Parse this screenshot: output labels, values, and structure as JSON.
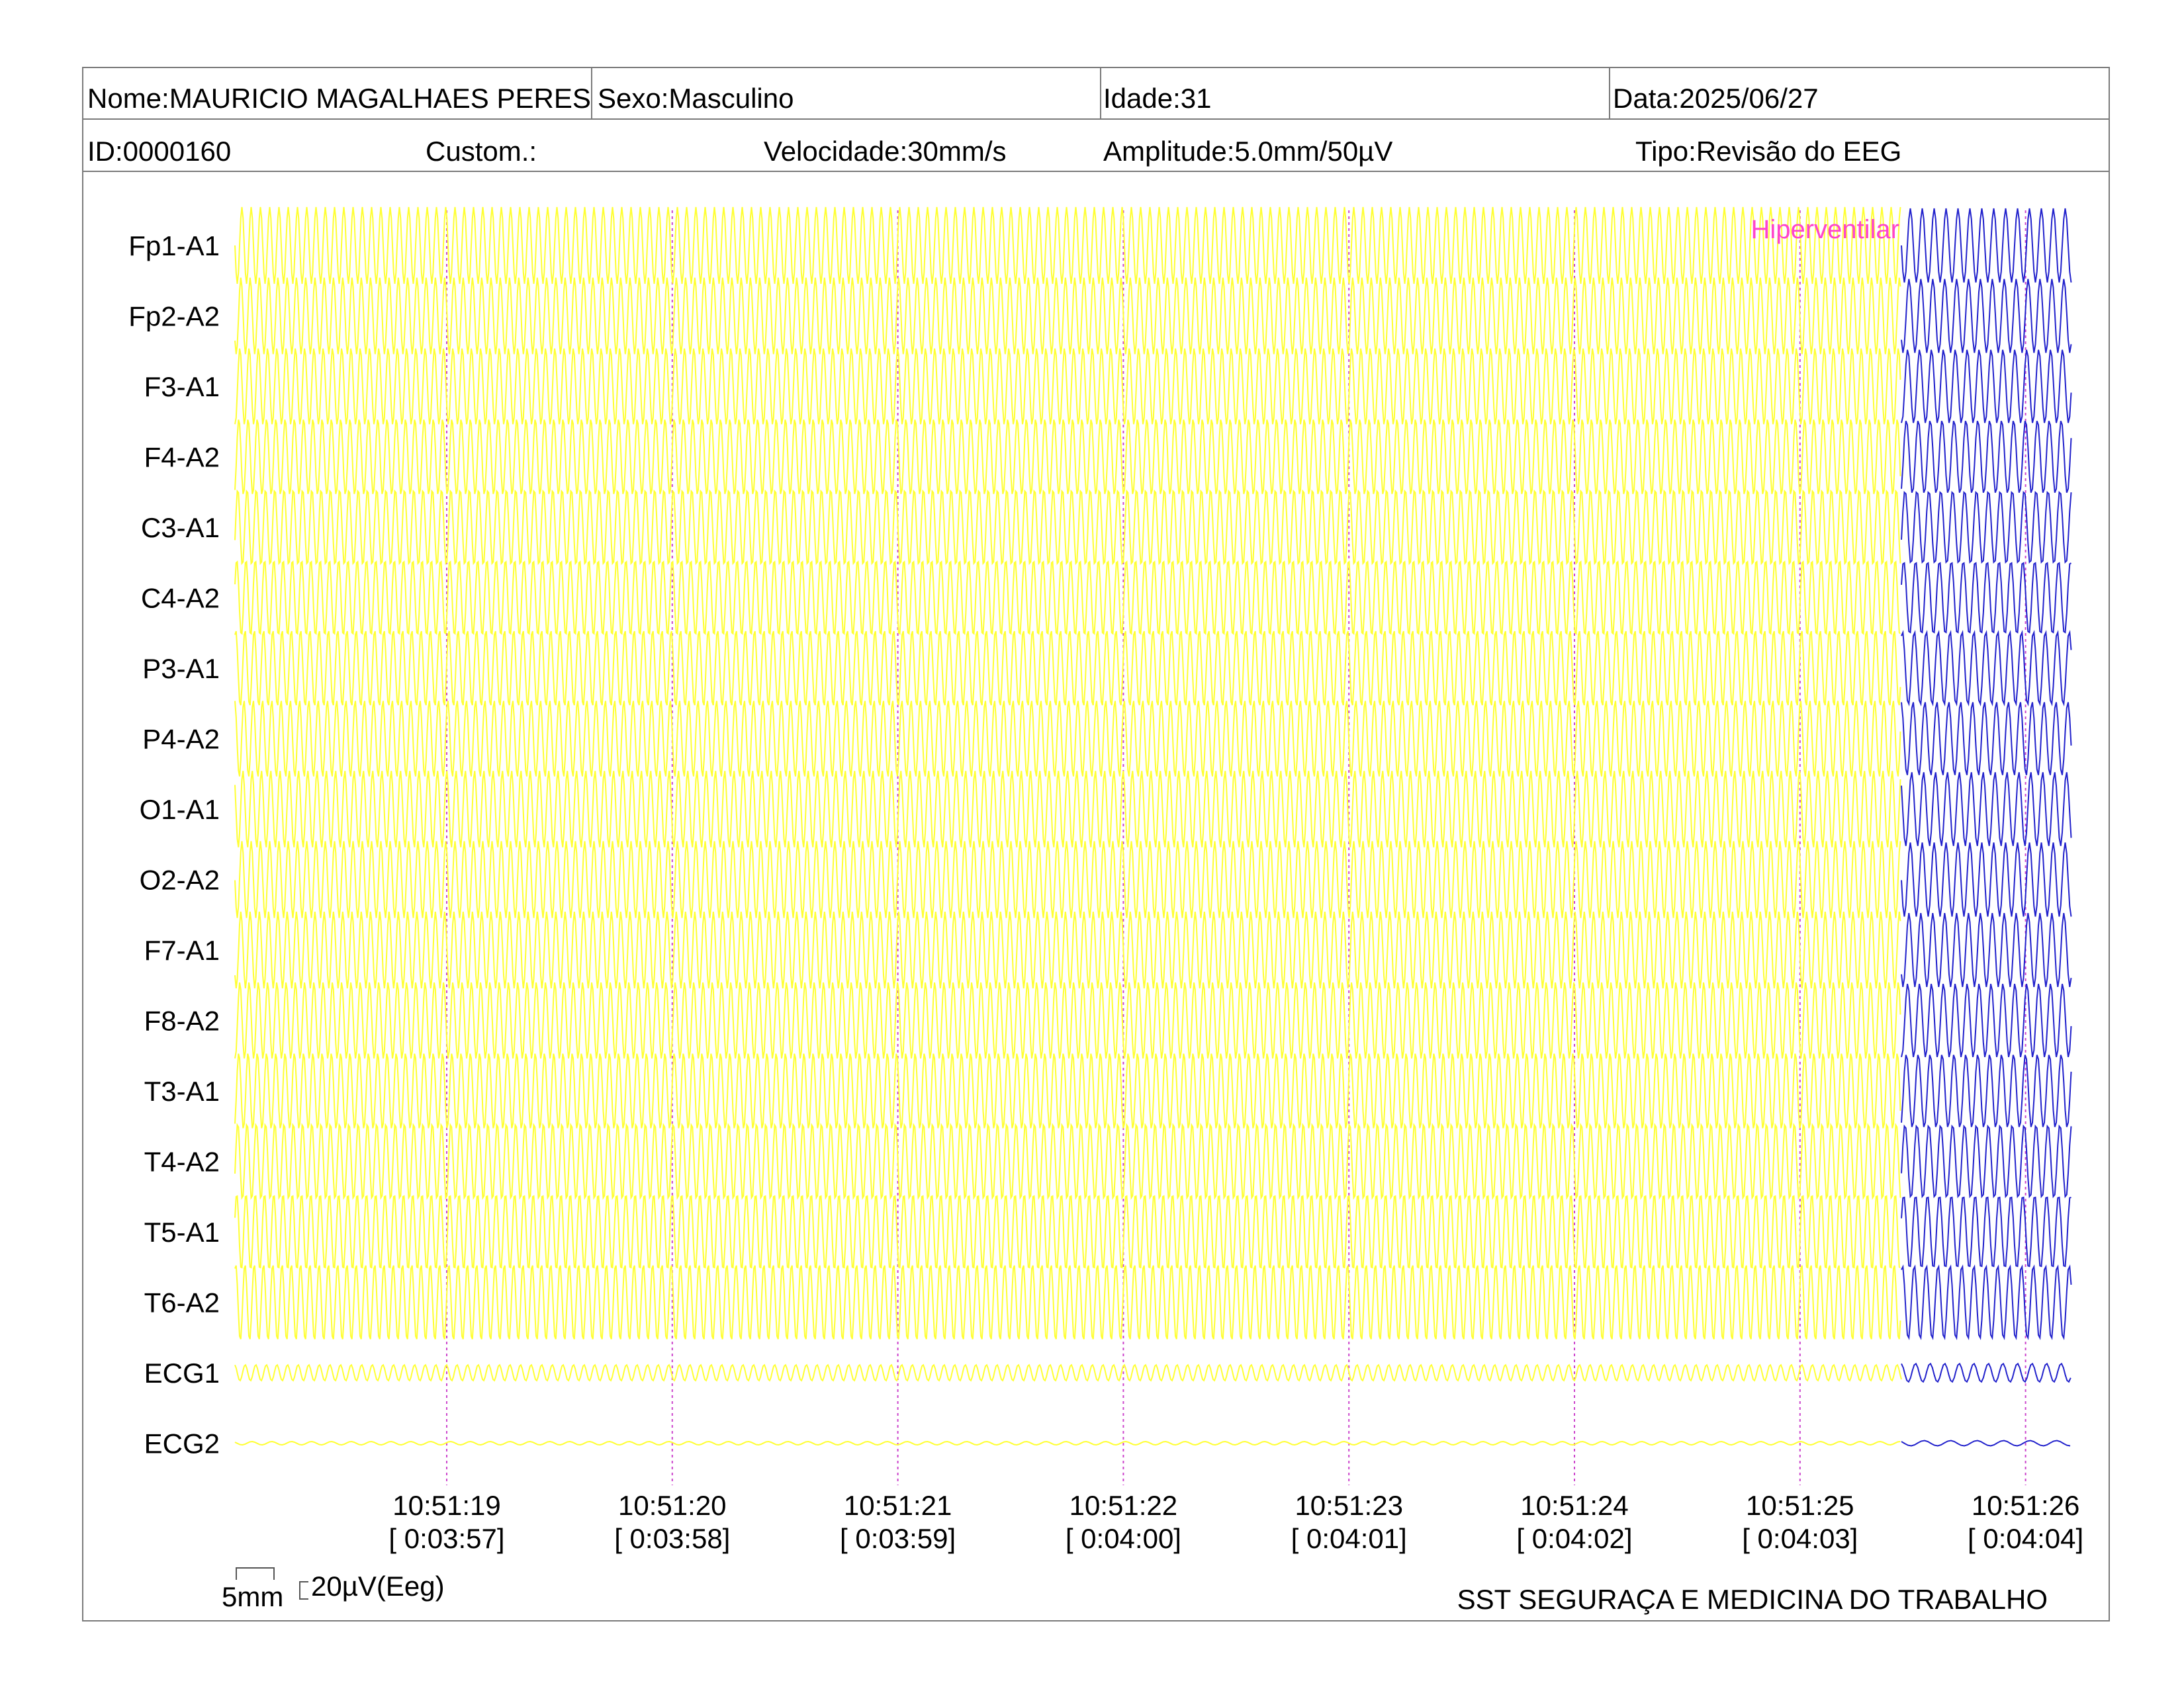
{
  "header": {
    "name": "Nome:MAURICIO MAGALHAES PERES",
    "sex": "Sexo:Masculino",
    "age": "Idade:31",
    "date": "Data:2025/06/27",
    "id": "ID:0000160",
    "custom": "Custom.:",
    "speed": "Velocidade:30mm/s",
    "amplitude": "Amplitude:5.0mm/50µV",
    "type": "Tipo:Revisão do EEG"
  },
  "channels": [
    "Fp1-A1",
    "Fp2-A2",
    "F3-A1",
    "F4-A2",
    "C3-A1",
    "C4-A2",
    "P3-A1",
    "P4-A2",
    "O1-A1",
    "O2-A2",
    "F7-A1",
    "F8-A2",
    "T3-A1",
    "T4-A2",
    "T5-A1",
    "T6-A2",
    "ECG1",
    "ECG2"
  ],
  "time_marks": [
    {
      "clock": "10:51:19",
      "elapsed": "[ 0:03:57]"
    },
    {
      "clock": "10:51:20",
      "elapsed": "[ 0:03:58]"
    },
    {
      "clock": "10:51:21",
      "elapsed": "[ 0:03:59]"
    },
    {
      "clock": "10:51:22",
      "elapsed": "[ 0:04:00]"
    },
    {
      "clock": "10:51:23",
      "elapsed": "[ 0:04:01]"
    },
    {
      "clock": "10:51:24",
      "elapsed": "[ 0:04:02]"
    },
    {
      "clock": "10:51:25",
      "elapsed": "[ 0:04:03]"
    },
    {
      "clock": "10:51:26",
      "elapsed": "[ 0:04:04]"
    }
  ],
  "event": {
    "label": "Hiperventilar",
    "color": "#ff44cc"
  },
  "calibration": {
    "time_label": "5mm",
    "amp_label": "20µV(Eeg)"
  },
  "footer": {
    "organization": "SST SEGURAÇA E MEDICINA DO TRABALHO"
  },
  "colors": {
    "trace_before": "#ffff33",
    "trace_after": "#2222cc",
    "marker_line": "#cc44cc",
    "border": "#7a7a7a"
  }
}
